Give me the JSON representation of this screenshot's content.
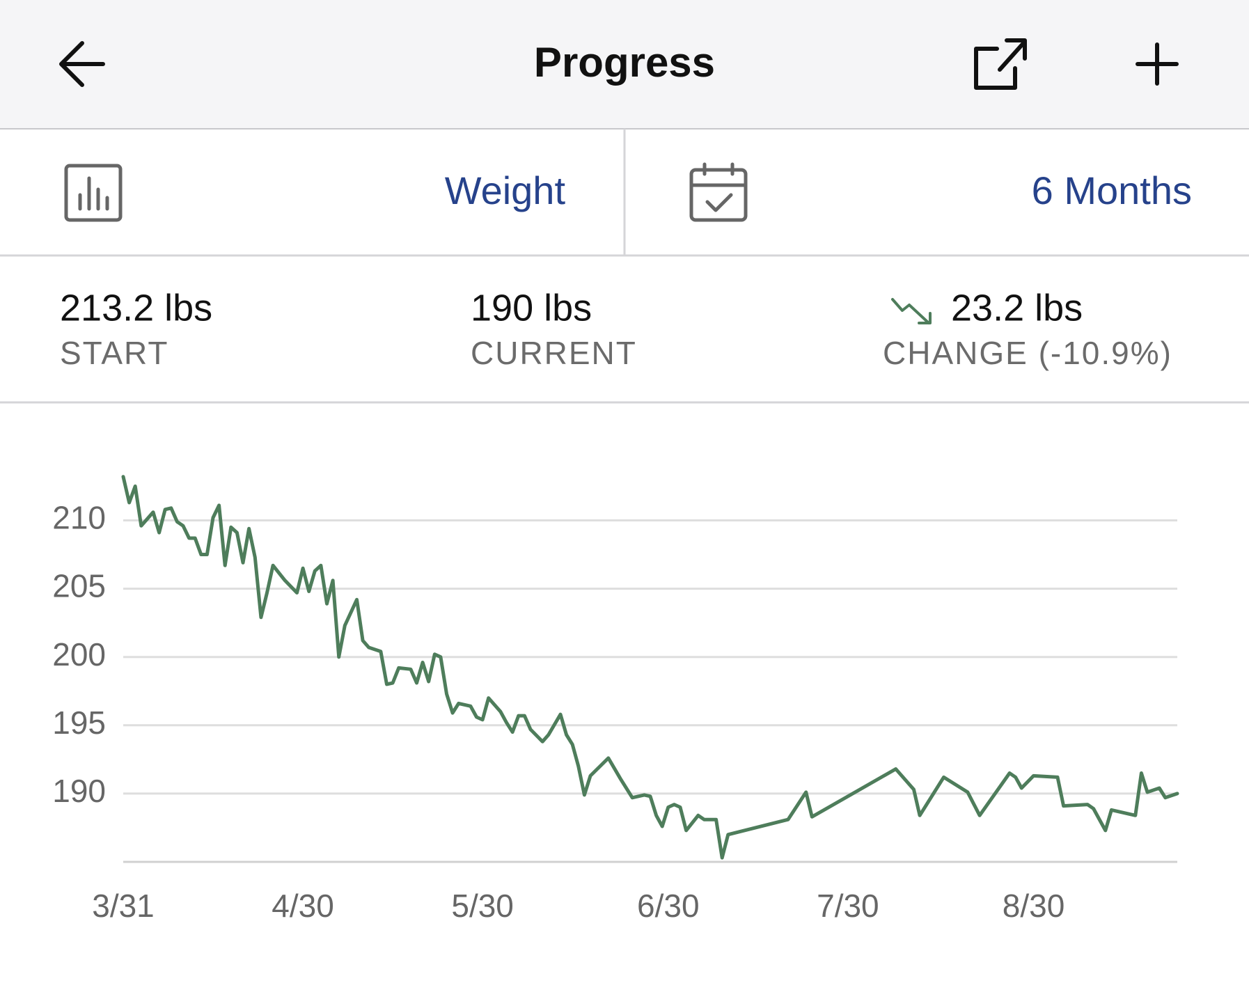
{
  "header": {
    "title": "Progress"
  },
  "selectors": {
    "metric": "Weight",
    "range": "6 Months"
  },
  "stats": [
    {
      "value": "213.2 lbs",
      "label": "START"
    },
    {
      "value": "190 lbs",
      "label": "CURRENT"
    },
    {
      "value": "23.2 lbs",
      "label": "CHANGE (-10.9%)"
    }
  ],
  "chart_data": {
    "type": "line",
    "color": "#4e7d5b",
    "grid": true,
    "x": [
      "3/31",
      "4/1",
      "4/2",
      "4/3",
      "4/5",
      "4/6",
      "4/7",
      "4/8",
      "4/9",
      "4/10",
      "4/11",
      "4/12",
      "4/13",
      "4/14",
      "4/15",
      "4/16",
      "4/17",
      "4/18",
      "4/19",
      "4/20",
      "4/21",
      "4/22",
      "4/23",
      "4/24",
      "4/25",
      "4/27",
      "4/29",
      "4/30",
      "5/1",
      "5/2",
      "5/3",
      "5/4",
      "5/5",
      "5/6",
      "5/7",
      "5/9",
      "5/10",
      "5/11",
      "5/13",
      "5/14",
      "5/15",
      "5/16",
      "5/18",
      "5/19",
      "5/20",
      "5/21",
      "5/22",
      "5/23",
      "5/24",
      "5/25",
      "5/26",
      "5/28",
      "5/29",
      "5/30",
      "5/31",
      "6/2",
      "6/3",
      "6/4",
      "6/5",
      "6/6",
      "6/7",
      "6/9",
      "6/10",
      "6/12",
      "6/13",
      "6/14",
      "6/15",
      "6/16",
      "6/17",
      "6/20",
      "6/22",
      "6/24",
      "6/26",
      "6/27",
      "6/28",
      "6/29",
      "6/30",
      "7/1",
      "7/2",
      "7/3",
      "7/5",
      "7/6",
      "7/8",
      "7/9",
      "7/10",
      "7/20",
      "7/23",
      "7/24",
      "8/7",
      "8/10",
      "8/11",
      "8/15",
      "8/19",
      "8/21",
      "8/26",
      "8/27",
      "8/28",
      "8/30",
      "9/3",
      "9/4",
      "9/8",
      "9/9",
      "9/11",
      "9/12",
      "9/16",
      "9/17",
      "9/18",
      "9/20",
      "9/21",
      "9/23"
    ],
    "values": [
      213.2,
      211.3,
      212.5,
      209.6,
      210.6,
      209.1,
      210.8,
      210.9,
      209.9,
      209.6,
      208.7,
      208.7,
      207.5,
      207.5,
      210.2,
      211.1,
      206.7,
      209.5,
      209.1,
      206.9,
      209.4,
      207.3,
      202.9,
      204.7,
      206.7,
      205.6,
      204.7,
      206.5,
      204.8,
      206.3,
      206.7,
      203.9,
      205.6,
      200.0,
      202.3,
      204.2,
      201.2,
      200.7,
      200.4,
      198.0,
      198.1,
      199.2,
      199.1,
      198.1,
      199.6,
      198.2,
      200.2,
      200.0,
      197.3,
      195.9,
      196.6,
      196.4,
      195.6,
      195.4,
      197.0,
      196.0,
      195.2,
      194.5,
      195.7,
      195.7,
      194.7,
      193.8,
      194.3,
      195.8,
      194.3,
      193.6,
      192.0,
      189.9,
      191.3,
      192.6,
      191.1,
      189.7,
      189.9,
      189.8,
      188.4,
      187.6,
      189.0,
      189.2,
      189.0,
      187.3,
      188.4,
      188.1,
      188.1,
      185.3,
      187.0,
      188.1,
      190.1,
      188.3,
      191.8,
      190.3,
      188.4,
      191.2,
      190.1,
      188.4,
      191.5,
      191.2,
      190.4,
      191.3,
      191.2,
      189.1,
      189.2,
      188.9,
      187.3,
      188.8,
      188.4,
      191.5,
      190.1,
      190.4,
      189.7,
      190.0
    ],
    "xlim": [
      "3/31",
      "9/23"
    ],
    "xticks": [
      "3/31",
      "4/30",
      "5/30",
      "6/30",
      "7/30",
      "8/30"
    ],
    "ylim": [
      185,
      214
    ],
    "yticks": [
      190,
      195,
      200,
      205,
      210
    ]
  }
}
